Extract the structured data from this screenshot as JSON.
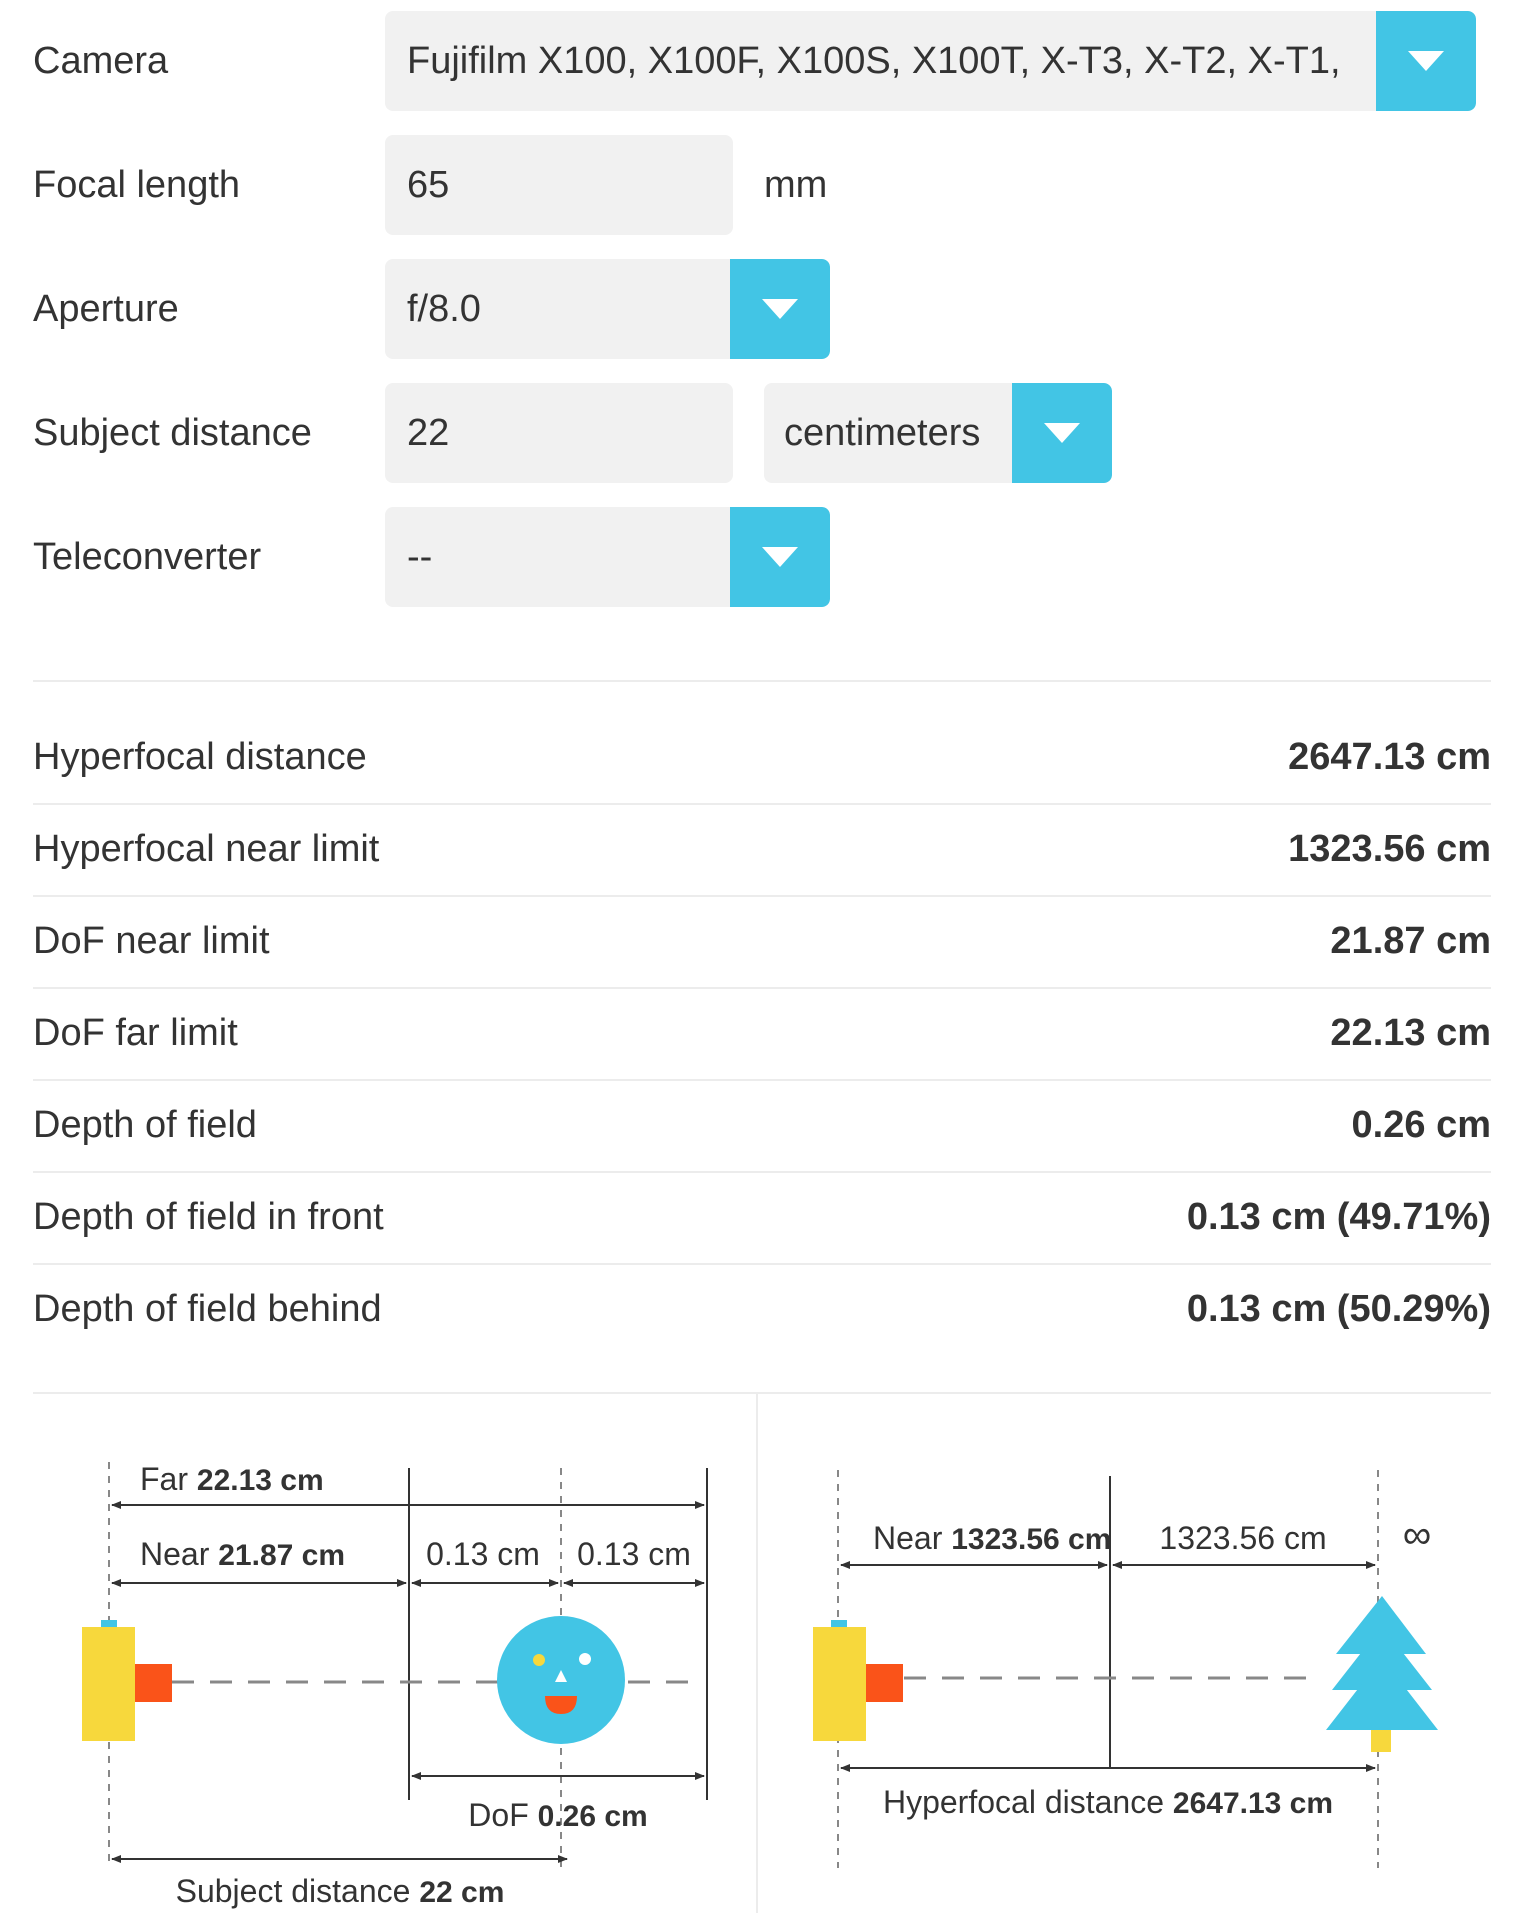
{
  "form": {
    "camera": {
      "label": "Camera",
      "value": "Fujifilm X100, X100F, X100S, X100T, X-T3, X-T2, X-T1,"
    },
    "focal_length": {
      "label": "Focal length",
      "value": "65",
      "unit": "mm"
    },
    "aperture": {
      "label": "Aperture",
      "value": "f/8.0"
    },
    "subject_distance": {
      "label": "Subject distance",
      "value": "22",
      "unit": "centimeters"
    },
    "teleconverter": {
      "label": "Teleconverter",
      "value": "--"
    }
  },
  "results": [
    {
      "label": "Hyperfocal distance",
      "value": "2647.13 cm"
    },
    {
      "label": "Hyperfocal near limit",
      "value": "1323.56 cm"
    },
    {
      "label": "DoF near limit",
      "value": "21.87 cm"
    },
    {
      "label": "DoF far limit",
      "value": "22.13 cm"
    },
    {
      "label": "Depth of field",
      "value": "0.26 cm"
    },
    {
      "label": "Depth of field in front",
      "value": "0.13 cm (49.71%)"
    },
    {
      "label": "Depth of field behind",
      "value": "0.13 cm (50.29%)"
    }
  ],
  "dof_diagram": {
    "far_label": "Far",
    "far_value": "22.13 cm",
    "near_label": "Near",
    "near_value": "21.87 cm",
    "front_value": "0.13 cm",
    "behind_value": "0.13 cm",
    "dof_label": "DoF",
    "dof_value": "0.26 cm",
    "subject_label": "Subject distance",
    "subject_value": "22 cm"
  },
  "hyperfocal_diagram": {
    "near_label": "Near",
    "near_value": "1323.56 cm",
    "beyond_value": "1323.56 cm",
    "infinity_symbol": "∞",
    "hyperfocal_label": "Hyperfocal distance",
    "hyperfocal_value": "2647.13 cm"
  },
  "colors": {
    "accent": "#42c5e5",
    "camera_body": "#f7d83c",
    "camera_lens": "#fa5319",
    "subject": "#42c5e5",
    "tree": "#42c5e5"
  }
}
